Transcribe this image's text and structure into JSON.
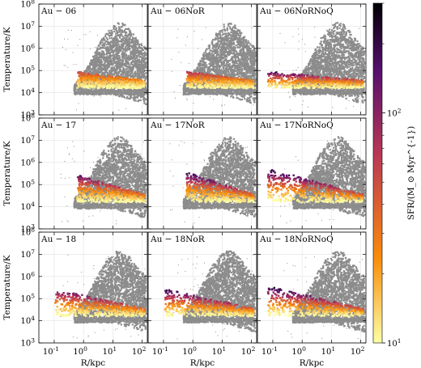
{
  "chart_data": {
    "type": "scatter",
    "description_free": true,
    "x_scale": "log",
    "y_scale": "log",
    "xlim": [
      0.03,
      150
    ],
    "ylim": [
      1000,
      100000000
    ],
    "grid": true,
    "xlabel": "R/kpc",
    "ylabel": "Temperature/K",
    "x_ticks": [
      "10^{-1}",
      "10^{0}",
      "10^{1}",
      "10^{2}"
    ],
    "y_ticks": [
      "10^{3}",
      "10^{4}",
      "10^{5}",
      "10^{6}",
      "10^{7}",
      "10^{8}"
    ],
    "colorbar": {
      "label": "SFR/(M_⊙ Myr^{-1})",
      "scale": "log",
      "range": [
        10,
        300
      ],
      "ticks": [
        "10^{1}",
        "10^{2}"
      ],
      "colors": [
        "#fcffa4",
        "#f98c0a",
        "#bc3754",
        "#57106e",
        "#000004"
      ]
    },
    "background_color": "#8c8c8c",
    "panels": [
      {
        "label": "Au − 06",
        "sf_peak_temp": 100000,
        "sf_max_sfr": 60
      },
      {
        "label": "Au − 06NoR",
        "sf_peak_temp": 100000,
        "sf_max_sfr": 80
      },
      {
        "label": "Au − 06NoRNoQ",
        "sf_peak_temp": 100000,
        "sf_max_sfr": 200
      },
      {
        "label": "Au − 17",
        "sf_peak_temp": 300000,
        "sf_max_sfr": 150
      },
      {
        "label": "Au − 17NoR",
        "sf_peak_temp": 400000,
        "sf_max_sfr": 220
      },
      {
        "label": "Au − 17NoRNoQ",
        "sf_peak_temp": 600000,
        "sf_max_sfr": 280
      },
      {
        "label": "Au − 18",
        "sf_peak_temp": 300000,
        "sf_max_sfr": 180
      },
      {
        "label": "Au − 18NoR",
        "sf_peak_temp": 300000,
        "sf_max_sfr": 220
      },
      {
        "label": "Au − 18NoRNoQ",
        "sf_peak_temp": 400000,
        "sf_max_sfr": 250
      }
    ]
  }
}
